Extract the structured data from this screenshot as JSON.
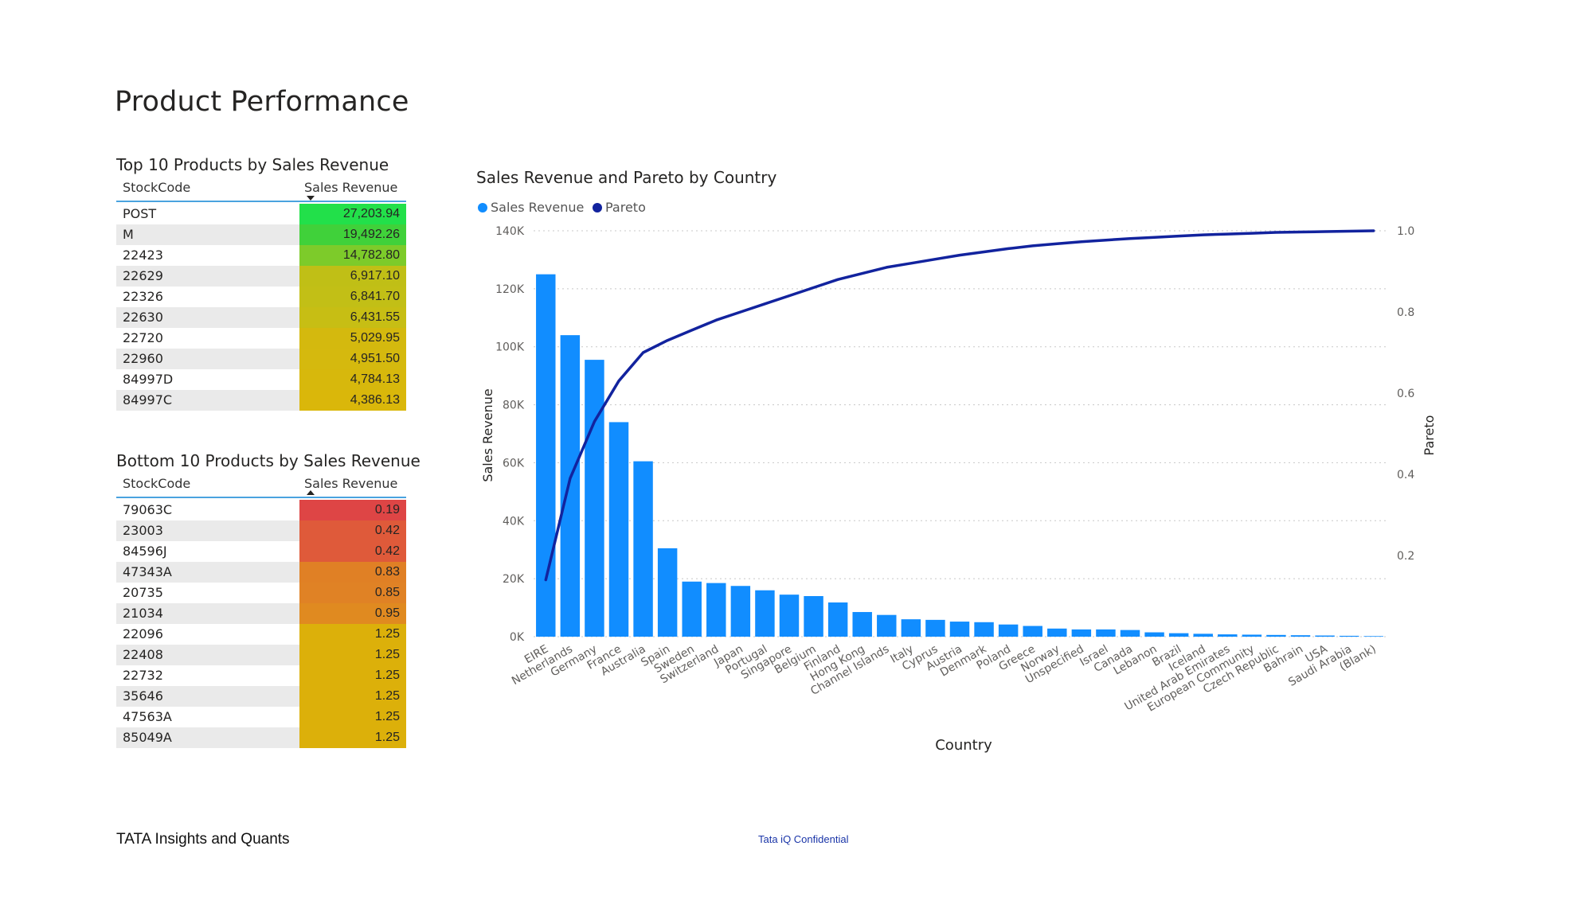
{
  "page": {
    "title": "Product Performance",
    "footer_left": "TATA Insights and Quants",
    "footer_center": "Tata iQ Confidential"
  },
  "top_table": {
    "title": "Top 10 Products by Sales Revenue",
    "col1": "StockCode",
    "col2": "Sales Revenue",
    "rows": [
      {
        "code": "POST",
        "value": "27,203.94",
        "color": "#22e04a"
      },
      {
        "code": "M",
        "value": "19,492.26",
        "color": "#40d13a"
      },
      {
        "code": "22423",
        "value": "14,782.80",
        "color": "#7dcb2a"
      },
      {
        "code": "22629",
        "value": "6,917.10",
        "color": "#c0bf16"
      },
      {
        "code": "22326",
        "value": "6,841.70",
        "color": "#c2bf16"
      },
      {
        "code": "22630",
        "value": "6,431.55",
        "color": "#c7be14"
      },
      {
        "code": "22720",
        "value": "5,029.95",
        "color": "#d4b90e"
      },
      {
        "code": "22960",
        "value": "4,951.50",
        "color": "#d5b90e"
      },
      {
        "code": "84997D",
        "value": "4,784.13",
        "color": "#d7b80c"
      },
      {
        "code": "84997C",
        "value": "4,386.13",
        "color": "#dab70a"
      }
    ]
  },
  "bottom_table": {
    "title": "Bottom 10 Products by Sales Revenue",
    "col1": "StockCode",
    "col2": "Sales Revenue",
    "rows": [
      {
        "code": "79063C",
        "value": "0.19",
        "color": "#de4545"
      },
      {
        "code": "23003",
        "value": "0.42",
        "color": "#df5a3a"
      },
      {
        "code": "84596J",
        "value": "0.42",
        "color": "#df5a3a"
      },
      {
        "code": "47343A",
        "value": "0.83",
        "color": "#e08025"
      },
      {
        "code": "20735",
        "value": "0.85",
        "color": "#e08225"
      },
      {
        "code": "21034",
        "value": "0.95",
        "color": "#e08a20"
      },
      {
        "code": "22096",
        "value": "1.25",
        "color": "#dcb00a"
      },
      {
        "code": "22408",
        "value": "1.25",
        "color": "#dcb00a"
      },
      {
        "code": "22732",
        "value": "1.25",
        "color": "#dcb00a"
      },
      {
        "code": "35646",
        "value": "1.25",
        "color": "#dcb00a"
      },
      {
        "code": "47563A",
        "value": "1.25",
        "color": "#dcb00a"
      },
      {
        "code": "85049A",
        "value": "1.25",
        "color": "#dcb00a"
      }
    ]
  },
  "chart_data": {
    "type": "bar",
    "title": "Sales Revenue and Pareto by Country",
    "xlabel": "Country",
    "ylabel": "Sales Revenue",
    "y2label": "Pareto",
    "legend": {
      "placement": "top-left"
    },
    "grid": true,
    "ylim": [
      0,
      140000
    ],
    "y2lim": [
      0,
      1.0
    ],
    "yticks": [
      "0K",
      "20K",
      "40K",
      "60K",
      "80K",
      "100K",
      "120K",
      "140K"
    ],
    "y2ticks": [
      "0.2",
      "0.4",
      "0.6",
      "0.8",
      "1.0"
    ],
    "categories": [
      "EIRE",
      "Netherlands",
      "Germany",
      "France",
      "Australia",
      "Spain",
      "Sweden",
      "Switzerland",
      "Japan",
      "Portugal",
      "Singapore",
      "Belgium",
      "Finland",
      "Hong Kong",
      "Channel Islands",
      "Italy",
      "Cyprus",
      "Austria",
      "Denmark",
      "Poland",
      "Greece",
      "Norway",
      "Unspecified",
      "Israel",
      "Canada",
      "Lebanon",
      "Brazil",
      "Iceland",
      "United Arab Emirates",
      "European Community",
      "Czech Republic",
      "Bahrain",
      "USA",
      "Saudi Arabia",
      "(Blank)"
    ],
    "series": [
      {
        "name": "Sales Revenue",
        "type": "bar",
        "color": "#118dff",
        "values": [
          125000,
          104000,
          95500,
          74000,
          60500,
          30500,
          19000,
          18500,
          17500,
          16000,
          14500,
          14000,
          11800,
          8500,
          7500,
          6000,
          5800,
          5200,
          5000,
          4200,
          3700,
          2800,
          2500,
          2500,
          2300,
          1500,
          1200,
          1000,
          800,
          700,
          600,
          500,
          400,
          300,
          200
        ]
      },
      {
        "name": "Pareto",
        "type": "line",
        "color": "#12239e",
        "values": [
          0.14,
          0.39,
          0.53,
          0.63,
          0.7,
          0.73,
          0.755,
          0.78,
          0.8,
          0.82,
          0.84,
          0.86,
          0.88,
          0.895,
          0.91,
          0.92,
          0.93,
          0.94,
          0.948,
          0.956,
          0.963,
          0.968,
          0.973,
          0.977,
          0.981,
          0.984,
          0.987,
          0.99,
          0.992,
          0.994,
          0.996,
          0.997,
          0.998,
          0.999,
          1.0
        ]
      }
    ]
  }
}
